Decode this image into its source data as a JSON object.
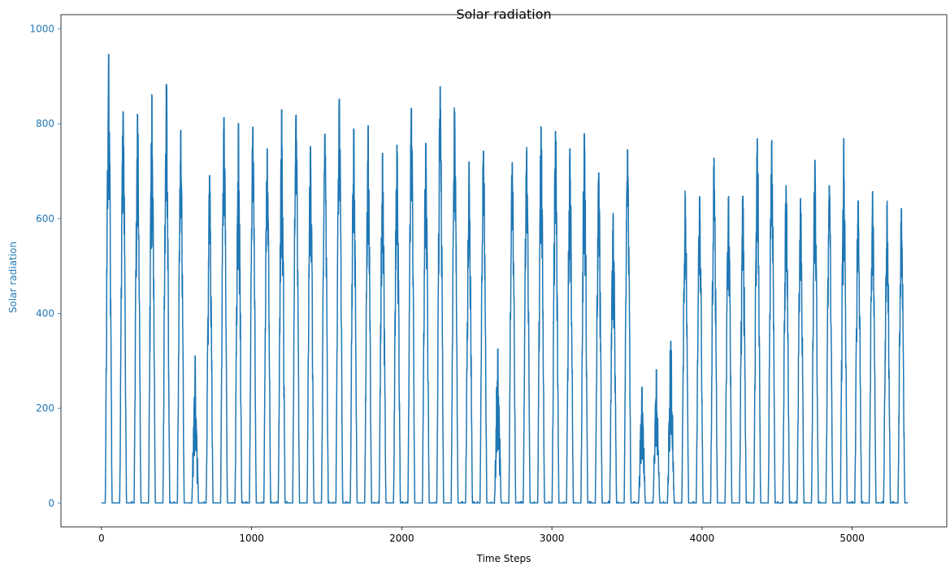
{
  "chart_data": {
    "type": "line",
    "title": "Solar radiation",
    "xlabel": "Time Steps",
    "ylabel": "Solar radiation",
    "xlim": [
      -270,
      5630
    ],
    "ylim": [
      -50,
      1030
    ],
    "xticks": [
      0,
      1000,
      2000,
      3000,
      4000,
      5000
    ],
    "yticks": [
      0,
      200,
      400,
      600,
      800,
      1000
    ],
    "grid": false,
    "legend": "none",
    "series_color": "#1f77b4",
    "ytick_color": "#1f77b4",
    "n_points": 5370,
    "series": [
      {
        "x_start": 0,
        "x_step": 96,
        "daily_peaks": [
          975,
          850,
          845,
          885,
          910,
          810,
          320,
          712,
          838,
          825,
          817,
          770,
          855,
          843,
          775,
          802,
          878,
          813,
          820,
          760,
          778,
          858,
          782,
          905,
          850,
          742,
          765,
          335,
          740,
          762,
          818,
          808,
          770,
          803,
          718,
          623,
          768,
          252,
          290,
          352,
          665,
          666,
          750,
          665,
          667,
          792,
          785,
          678,
          662,
          745,
          690,
          792,
          657,
          677,
          648,
          640,
          637
        ]
      }
    ]
  }
}
